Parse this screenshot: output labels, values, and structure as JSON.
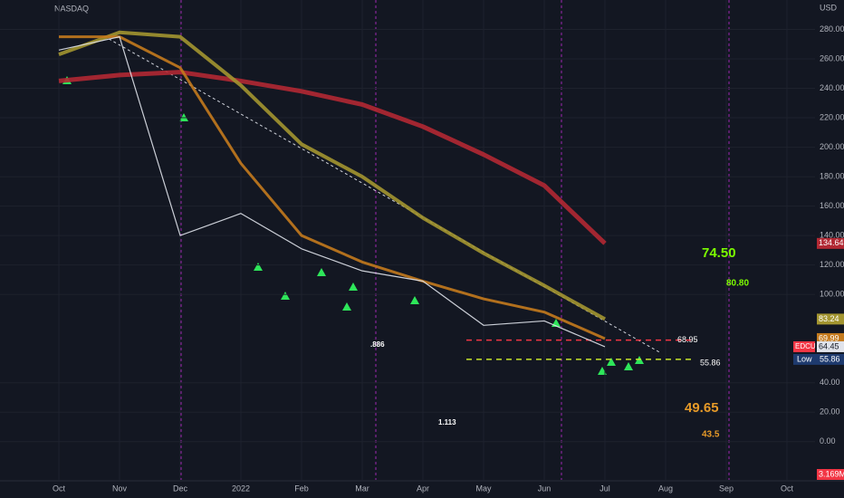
{
  "chart_data": {
    "type": "line",
    "exchange": "NASDAQ",
    "currency": "USD",
    "symbol": "EDCU",
    "categories": [
      "Oct",
      "Nov",
      "Dec",
      "2022",
      "Feb",
      "Mar",
      "Apr",
      "May",
      "Jun",
      "Jul",
      "Aug",
      "Sep",
      "Oct"
    ],
    "series": [
      {
        "color": "#b22833",
        "values": [
          245,
          249,
          251,
          245,
          238,
          229,
          214,
          195,
          174,
          134.64,
          null,
          null,
          null
        ],
        "value_labels": [
          null,
          null,
          null,
          null,
          null,
          null,
          null,
          null,
          null,
          "134.64",
          null,
          null,
          null
        ]
      },
      {
        "color": "#a39530",
        "values": [
          263,
          278,
          275,
          242,
          202,
          180,
          152,
          128,
          106,
          83.24,
          null,
          null,
          null
        ],
        "value_labels": [
          null,
          null,
          null,
          null,
          null,
          null,
          null,
          null,
          null,
          "83.24",
          null,
          null,
          null
        ]
      },
      {
        "color": "#c47a1d",
        "values": [
          275,
          275,
          254,
          189,
          140,
          122,
          109,
          97,
          88,
          69.99,
          null,
          null,
          null
        ],
        "value_labels": [
          null,
          null,
          null,
          null,
          null,
          null,
          null,
          null,
          null,
          "69.99",
          null,
          null,
          null
        ]
      },
      {
        "color": "#e0e3eb",
        "values": [
          266,
          275,
          140,
          155,
          131,
          116,
          109,
          79,
          82,
          64.45,
          null,
          null,
          null
        ],
        "value_labels": [
          null,
          null,
          null,
          null,
          null,
          null,
          null,
          null,
          null,
          "64.45",
          null,
          null,
          null
        ]
      }
    ],
    "ylim": [
      -26,
      300
    ],
    "yticks": [
      {
        "value": 0,
        "label": "0.00"
      },
      {
        "value": 20,
        "label": "20.00"
      },
      {
        "value": 40,
        "label": "40.00"
      },
      {
        "value": 100,
        "label": "100.00"
      },
      {
        "value": 120,
        "label": "120.00"
      },
      {
        "value": 140,
        "label": "140.00"
      },
      {
        "value": 160,
        "label": "160.00"
      },
      {
        "value": 180,
        "label": "180.00"
      },
      {
        "value": 200,
        "label": "200.00"
      },
      {
        "value": 220,
        "label": "220.00"
      },
      {
        "value": 240,
        "label": "240.00"
      },
      {
        "value": 260,
        "label": "260.00"
      },
      {
        "value": 280,
        "label": "280.00"
      }
    ],
    "levels": [
      {
        "value": 68.95,
        "label": "68.95",
        "color": "#f23645"
      },
      {
        "value": 55.86,
        "label": "55.86",
        "color": "#c8e62b",
        "tag": "Low"
      }
    ],
    "volume_label": "3.169M",
    "annotations": [
      {
        "text": "74.50",
        "color": "#7cfc00"
      },
      {
        "text": "80.80",
        "color": "#7cfc00"
      },
      {
        "text": "49.65",
        "color": "#e69a28"
      },
      {
        "text": "43.5",
        "color": "#e69a28"
      },
      {
        "text": "1.113",
        "color": "#ffffff"
      },
      {
        "text": ".886",
        "color": "#ffffff"
      }
    ]
  }
}
